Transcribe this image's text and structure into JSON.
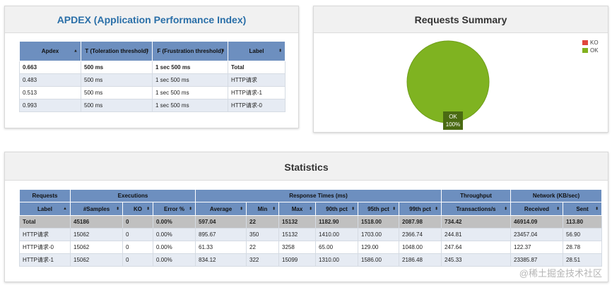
{
  "apdex": {
    "title": "APDEX (Application Performance Index)",
    "headers": [
      "Apdex",
      "T (Toleration threshold)",
      "F (Frustration threshold)",
      "Label"
    ],
    "rows": [
      [
        "0.663",
        "500 ms",
        "1 sec 500 ms",
        "Total"
      ],
      [
        "0.483",
        "500 ms",
        "1 sec 500 ms",
        "HTTP请求"
      ],
      [
        "0.513",
        "500 ms",
        "1 sec 500 ms",
        "HTTP请求-1"
      ],
      [
        "0.993",
        "500 ms",
        "1 sec 500 ms",
        "HTTP请求-0"
      ]
    ]
  },
  "summary": {
    "title": "Requests Summary",
    "legend": [
      {
        "label": "KO",
        "color": "#e0463c"
      },
      {
        "label": "OK",
        "color": "#82b11e"
      }
    ],
    "slice_label": "OK",
    "slice_value": "100%",
    "ok_percent": 100,
    "colors": {
      "ok": "#7fb321",
      "ok_edge": "#6f9e1a",
      "label_bg": "#4a6a12"
    }
  },
  "statistics": {
    "title": "Statistics",
    "groups": [
      "Requests",
      "Executions",
      "Response Times (ms)",
      "Throughput",
      "Network (KB/sec)"
    ],
    "columns": [
      "Label",
      "#Samples",
      "KO",
      "Error %",
      "Average",
      "Min",
      "Max",
      "90th pct",
      "95th pct",
      "99th pct",
      "Transactions/s",
      "Received",
      "Sent"
    ],
    "rows": [
      [
        "Total",
        "45186",
        "0",
        "0.00%",
        "597.04",
        "22",
        "15132",
        "1182.90",
        "1518.00",
        "2087.98",
        "734.42",
        "46914.09",
        "113.80"
      ],
      [
        "HTTP请求",
        "15062",
        "0",
        "0.00%",
        "895.67",
        "350",
        "15132",
        "1410.00",
        "1703.00",
        "2366.74",
        "244.81",
        "23457.04",
        "56.90"
      ],
      [
        "HTTP请求-0",
        "15062",
        "0",
        "0.00%",
        "61.33",
        "22",
        "3258",
        "65.00",
        "129.00",
        "1048.00",
        "247.64",
        "122.37",
        "28.78"
      ],
      [
        "HTTP请求-1",
        "15062",
        "0",
        "0.00%",
        "834.12",
        "322",
        "15099",
        "1310.00",
        "1586.00",
        "2186.48",
        "245.33",
        "23385.87",
        "28.51"
      ]
    ]
  },
  "watermark": "@稀土掘金技术社区"
}
